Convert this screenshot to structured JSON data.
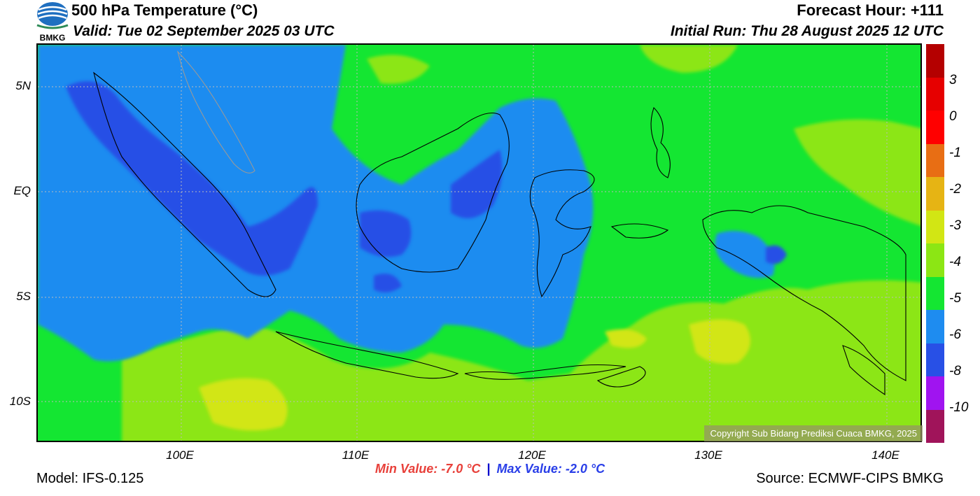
{
  "header": {
    "title": "500 hPa Temperature (°C)",
    "valid": "Valid: Tue 02 September 2025 03 UTC",
    "forecast_hour": "Forecast Hour: +111",
    "initial_run": "Initial Run: Thu 28 August 2025 12 UTC",
    "logo_text": "BMKG"
  },
  "map": {
    "lat_labels": [
      "5N",
      "EQ",
      "5S",
      "10S"
    ],
    "lon_labels": [
      "100E",
      "110E",
      "120E",
      "130E",
      "140E"
    ],
    "copyright": "Copyright Sub Bidang Prediksi Cuaca BMKG, 2025"
  },
  "colorbar": {
    "labels": [
      "3",
      "0",
      "-1",
      "-2",
      "-3",
      "-4",
      "-5",
      "-6",
      "-8",
      "-10"
    ],
    "colors": [
      "#b40000",
      "#e60000",
      "#ff0000",
      "#e86e14",
      "#e6b414",
      "#d2e614",
      "#8ce614",
      "#14e632",
      "#1e8cf0",
      "#2850e6",
      "#a014f0",
      "#a0145a"
    ]
  },
  "footer": {
    "min_value": "Min Value: -7.0 °C",
    "separator": "|",
    "max_value": "Max Value: -2.0 °C",
    "model": "Model: IFS-0.125",
    "source": "Source: ECMWF-CIPS BMKG"
  }
}
